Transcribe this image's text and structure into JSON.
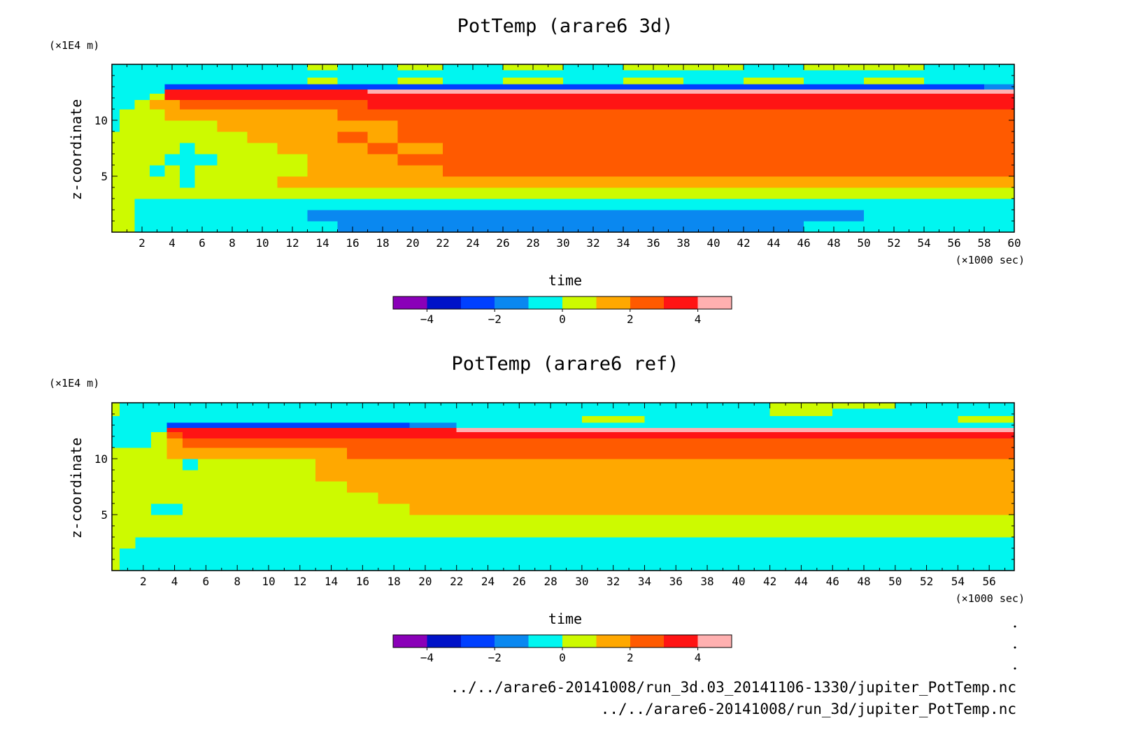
{
  "chart_data": [
    {
      "type": "heatmap",
      "title": "PotTemp (arare6 3d)",
      "xlabel": "time",
      "x_unit": "(×1000 sec)",
      "ylabel": "z-coordinate",
      "y_unit": "(×1E4 m)",
      "xlim": [
        0,
        60
      ],
      "ylim": [
        0,
        15
      ],
      "x_ticks": [
        2,
        4,
        6,
        8,
        10,
        12,
        14,
        16,
        18,
        20,
        22,
        24,
        26,
        28,
        30,
        32,
        34,
        36,
        38,
        40,
        42,
        44,
        46,
        48,
        50,
        52,
        54,
        56,
        58,
        60
      ],
      "y_ticks": [
        5,
        10
      ],
      "colorbar": {
        "levels": [
          -5,
          -4,
          -3,
          -2,
          -1,
          0,
          1,
          2,
          3,
          4,
          5
        ],
        "tick_labels": [
          "−4",
          "−2",
          "0",
          "2",
          "4"
        ],
        "tick_values": [
          -4,
          -2,
          0,
          2,
          4
        ]
      },
      "field": {
        "x": [
          0,
          1,
          2,
          3,
          4,
          5,
          6,
          8,
          10,
          12,
          14,
          16,
          18,
          20,
          24,
          28,
          32,
          36,
          40,
          44,
          48,
          52,
          56,
          60
        ],
        "y": [
          0.5,
          1.5,
          2.5,
          3.5,
          4.5,
          5.5,
          6.5,
          7.5,
          8.5,
          9.5,
          10.5,
          11.5,
          12.2,
          12.6,
          13.0,
          13.5,
          14.2,
          14.8
        ],
        "values": [
          [
            0.7,
            0.5,
            -0.4,
            -0.4,
            -0.4,
            -0.4,
            -0.4,
            -0.4,
            -0.4,
            -0.4,
            -0.8,
            -1.4,
            -1.5,
            -1.5,
            -1.5,
            -1.5,
            -1.5,
            -1.5,
            -1.4,
            -1.2,
            -0.6,
            -0.5,
            -0.4,
            -0.4
          ],
          [
            0.7,
            0.5,
            -0.4,
            -0.4,
            -0.4,
            -0.4,
            -0.4,
            -0.4,
            -0.4,
            -0.4,
            -1.3,
            -1.6,
            -1.6,
            -1.6,
            -1.6,
            -1.6,
            -1.6,
            -1.6,
            -1.6,
            -1.3,
            -1.2,
            -0.6,
            -0.6,
            -0.5
          ],
          [
            0.7,
            0.6,
            -0.3,
            -0.3,
            -0.3,
            -0.3,
            -0.3,
            -0.3,
            -0.3,
            -0.3,
            -0.3,
            -0.3,
            -0.3,
            -0.3,
            -0.3,
            -0.3,
            -0.3,
            -0.3,
            -0.3,
            -0.3,
            -0.3,
            -0.3,
            -0.3,
            -0.3
          ],
          [
            0.7,
            0.7,
            0.5,
            0.5,
            0.5,
            0.5,
            0.5,
            0.5,
            0.5,
            0.6,
            0.6,
            0.7,
            0.7,
            0.8,
            0.8,
            0.8,
            0.8,
            0.8,
            0.8,
            0.8,
            0.8,
            0.8,
            0.8,
            0.8
          ],
          [
            0.7,
            0.7,
            0.6,
            0.6,
            0.6,
            -0.3,
            0.6,
            0.6,
            0.6,
            1.2,
            1.4,
            1.5,
            1.6,
            1.6,
            1.6,
            1.6,
            1.6,
            1.6,
            1.6,
            1.6,
            1.6,
            1.6,
            1.6,
            1.5
          ],
          [
            0.6,
            0.6,
            0.6,
            -0.3,
            0.6,
            -0.3,
            0.6,
            0.6,
            0.6,
            0.6,
            1.4,
            1.5,
            1.6,
            1.7,
            2.1,
            2.5,
            2.6,
            2.6,
            2.6,
            2.6,
            2.6,
            2.6,
            2.6,
            2.6
          ],
          [
            0.6,
            0.6,
            0.6,
            0.6,
            -0.3,
            -0.4,
            -0.3,
            0.6,
            0.6,
            0.6,
            1.4,
            1.5,
            1.6,
            2.0,
            2.3,
            2.6,
            2.7,
            2.7,
            2.7,
            2.7,
            2.7,
            2.7,
            2.7,
            2.7
          ],
          [
            0.6,
            0.6,
            0.6,
            0.6,
            0.6,
            -0.3,
            0.6,
            0.6,
            0.6,
            1.3,
            1.5,
            1.6,
            2.1,
            1.6,
            2.5,
            2.7,
            2.8,
            2.8,
            2.8,
            2.8,
            2.8,
            2.8,
            2.8,
            2.8
          ],
          [
            0.5,
            0.6,
            0.6,
            0.6,
            0.6,
            0.6,
            0.6,
            0.6,
            1.3,
            1.5,
            1.6,
            2.1,
            1.6,
            2.3,
            2.6,
            2.8,
            2.8,
            2.8,
            2.8,
            2.8,
            2.8,
            2.8,
            2.8,
            2.8
          ],
          [
            -0.3,
            0.6,
            0.6,
            0.6,
            0.6,
            0.6,
            0.6,
            1.3,
            1.4,
            1.5,
            1.6,
            1.7,
            1.8,
            2.1,
            2.5,
            2.7,
            2.8,
            2.8,
            2.8,
            2.8,
            2.8,
            2.8,
            2.8,
            2.8
          ],
          [
            -0.3,
            0.4,
            0.6,
            0.6,
            1.2,
            1.3,
            1.3,
            1.4,
            1.5,
            1.6,
            1.8,
            2.0,
            2.2,
            2.4,
            2.7,
            2.8,
            2.8,
            2.8,
            2.8,
            2.8,
            2.8,
            2.8,
            2.8,
            2.8
          ],
          [
            -0.3,
            -0.3,
            0.5,
            1.2,
            1.5,
            2.5,
            2.5,
            2.2,
            2.1,
            2.2,
            2.5,
            2.8,
            3.2,
            3.3,
            3.4,
            3.4,
            3.4,
            3.4,
            3.4,
            3.4,
            3.4,
            3.4,
            3.4,
            3.4
          ],
          [
            -0.3,
            -0.3,
            -0.3,
            0.8,
            3.2,
            3.3,
            3.4,
            3.3,
            3.3,
            3.3,
            3.3,
            3.3,
            3.3,
            3.4,
            3.5,
            3.5,
            3.5,
            3.5,
            3.5,
            3.5,
            3.5,
            3.5,
            3.5,
            3.5
          ],
          [
            -0.3,
            -0.3,
            -0.3,
            -0.3,
            3.4,
            3.5,
            3.6,
            3.7,
            3.7,
            3.8,
            3.8,
            3.9,
            4.1,
            4.2,
            4.2,
            4.3,
            4.3,
            4.3,
            4.3,
            4.4,
            4.4,
            4.5,
            4.5,
            4.5
          ],
          [
            -0.3,
            -0.3,
            -0.3,
            -0.3,
            -2.6,
            -2.4,
            -2.4,
            -2.6,
            -2.6,
            -2.7,
            -2.5,
            -2.6,
            -2.7,
            -2.5,
            -2.6,
            -2.5,
            -2.6,
            -2.5,
            -2.6,
            -2.4,
            -2.3,
            -2.2,
            -2.1,
            -2.0
          ],
          [
            -0.3,
            -0.3,
            -0.3,
            -0.3,
            -0.3,
            -0.3,
            -0.3,
            -0.3,
            -0.3,
            -0.3,
            0.6,
            -0.3,
            -0.3,
            0.6,
            -0.3,
            0.6,
            -0.3,
            0.6,
            -0.3,
            0.6,
            -0.3,
            0.6,
            -0.3,
            -0.3
          ],
          [
            -0.3,
            -0.3,
            -0.3,
            -0.3,
            -0.3,
            -0.3,
            -0.3,
            -0.3,
            -0.3,
            -0.3,
            -0.3,
            -0.3,
            -0.3,
            -0.3,
            -0.3,
            -0.3,
            -0.3,
            -0.3,
            -0.3,
            -0.3,
            -0.3,
            -0.3,
            -0.3,
            -0.3
          ],
          [
            -0.3,
            -0.3,
            -0.3,
            -0.3,
            -0.3,
            -0.3,
            -0.3,
            -0.3,
            -0.3,
            -0.3,
            0.6,
            -0.3,
            -0.3,
            0.6,
            -0.3,
            0.6,
            -0.3,
            0.6,
            0.6,
            -0.3,
            0.6,
            0.6,
            -0.3,
            -0.3
          ]
        ]
      }
    },
    {
      "type": "heatmap",
      "title": "PotTemp (arare6 ref)",
      "xlabel": "time",
      "x_unit": "(×1000 sec)",
      "ylabel": "z-coordinate",
      "y_unit": "(×1E4 m)",
      "xlim": [
        0,
        57.6
      ],
      "ylim": [
        0,
        15
      ],
      "x_ticks": [
        2,
        4,
        6,
        8,
        10,
        12,
        14,
        16,
        18,
        20,
        22,
        24,
        26,
        28,
        30,
        32,
        34,
        36,
        38,
        40,
        42,
        44,
        46,
        48,
        50,
        52,
        54,
        56
      ],
      "y_ticks": [
        5,
        10
      ],
      "colorbar": {
        "levels": [
          -5,
          -4,
          -3,
          -2,
          -1,
          0,
          1,
          2,
          3,
          4,
          5
        ],
        "tick_labels": [
          "−4",
          "−2",
          "0",
          "2",
          "4"
        ],
        "tick_values": [
          -4,
          -2,
          0,
          2,
          4
        ]
      },
      "field": {
        "x": [
          0,
          1,
          2,
          3,
          4,
          5,
          6,
          8,
          10,
          12,
          14,
          16,
          18,
          20,
          24,
          28,
          32,
          36,
          40,
          44,
          48,
          52,
          56,
          57.6
        ],
        "y": [
          0.5,
          1.5,
          2.5,
          3.5,
          4.5,
          5.5,
          6.5,
          7.5,
          8.5,
          9.5,
          10.5,
          11.5,
          12.2,
          12.6,
          13.0,
          13.5,
          14.2,
          14.8
        ],
        "values": [
          [
            0.7,
            -0.4,
            -0.4,
            -0.4,
            -0.4,
            -0.4,
            -0.4,
            -0.4,
            -0.4,
            -0.4,
            -0.4,
            -0.4,
            -0.4,
            -0.4,
            -0.4,
            -0.4,
            -0.4,
            -0.4,
            -0.4,
            -0.4,
            -0.4,
            -0.4,
            -0.4,
            -0.4
          ],
          [
            0.7,
            -0.4,
            -0.4,
            -0.4,
            -0.4,
            -0.4,
            -0.4,
            -0.4,
            -0.4,
            -0.4,
            -0.4,
            -0.4,
            -0.4,
            -0.4,
            -0.4,
            -0.4,
            -0.4,
            -0.4,
            -0.4,
            -0.4,
            -0.4,
            -0.4,
            -0.4,
            -0.4
          ],
          [
            0.7,
            0.7,
            -0.3,
            -0.3,
            -0.3,
            -0.3,
            -0.3,
            -0.3,
            -0.3,
            -0.3,
            -0.3,
            -0.3,
            -0.3,
            -0.3,
            -0.3,
            -0.3,
            -0.3,
            -0.3,
            -0.3,
            -0.3,
            -0.3,
            -0.3,
            -0.3,
            -0.3
          ],
          [
            0.6,
            0.6,
            0.6,
            0.6,
            0.6,
            0.6,
            0.6,
            0.6,
            0.6,
            0.6,
            0.6,
            0.6,
            0.6,
            0.6,
            0.6,
            0.6,
            0.6,
            0.6,
            0.6,
            0.6,
            0.6,
            0.6,
            0.6,
            0.6
          ],
          [
            0.6,
            0.6,
            0.6,
            0.6,
            0.6,
            0.6,
            0.6,
            0.6,
            0.6,
            0.6,
            0.6,
            0.6,
            0.6,
            0.6,
            0.6,
            0.6,
            0.6,
            0.6,
            0.6,
            0.6,
            0.6,
            0.6,
            0.6,
            0.6
          ],
          [
            0.6,
            0.6,
            0.6,
            -0.3,
            -0.3,
            0.6,
            0.6,
            0.6,
            0.6,
            0.6,
            0.6,
            0.6,
            0.6,
            1.5,
            1.7,
            1.7,
            1.7,
            1.7,
            1.7,
            1.7,
            1.7,
            1.7,
            1.7,
            1.7
          ],
          [
            0.6,
            0.6,
            0.6,
            0.6,
            0.6,
            0.6,
            0.6,
            0.6,
            0.6,
            0.6,
            0.6,
            0.6,
            1.5,
            1.6,
            1.7,
            1.7,
            1.7,
            1.7,
            1.7,
            1.7,
            1.7,
            1.7,
            1.7,
            1.7
          ],
          [
            0.6,
            0.6,
            0.6,
            0.6,
            0.6,
            0.6,
            0.6,
            0.6,
            0.6,
            0.6,
            0.6,
            1.5,
            1.6,
            1.7,
            1.7,
            1.7,
            1.7,
            1.7,
            1.7,
            1.7,
            1.7,
            1.7,
            1.7,
            1.7
          ],
          [
            0.6,
            0.6,
            0.6,
            0.6,
            0.6,
            0.6,
            0.6,
            0.6,
            0.6,
            0.6,
            1.3,
            1.5,
            1.6,
            1.7,
            1.7,
            1.7,
            1.7,
            1.7,
            1.7,
            1.7,
            1.7,
            1.7,
            1.7,
            1.7
          ],
          [
            0.6,
            0.6,
            0.6,
            0.6,
            0.6,
            -0.3,
            0.6,
            0.6,
            0.6,
            0.6,
            1.3,
            1.5,
            1.6,
            1.7,
            1.7,
            1.7,
            1.7,
            1.7,
            1.7,
            1.7,
            1.7,
            1.7,
            1.7,
            1.7
          ],
          [
            0.6,
            0.6,
            0.6,
            0.6,
            1.3,
            1.4,
            1.5,
            1.6,
            1.7,
            1.8,
            1.9,
            2.1,
            2.2,
            2.3,
            2.4,
            2.6,
            2.6,
            2.6,
            2.6,
            2.6,
            2.6,
            2.6,
            2.6,
            2.6
          ],
          [
            -0.3,
            -0.3,
            -0.3,
            0.8,
            1.5,
            2.3,
            2.4,
            2.5,
            2.5,
            2.6,
            2.6,
            2.6,
            2.7,
            2.7,
            2.8,
            2.8,
            2.8,
            2.8,
            2.8,
            2.8,
            2.8,
            2.8,
            2.8,
            2.8
          ],
          [
            -0.3,
            -0.3,
            -0.3,
            0.8,
            2.2,
            3.3,
            3.4,
            3.4,
            3.4,
            3.4,
            3.4,
            3.4,
            3.4,
            3.4,
            3.4,
            3.4,
            3.4,
            3.4,
            3.4,
            3.4,
            3.4,
            3.4,
            3.4,
            3.4
          ],
          [
            -0.3,
            -0.3,
            -0.3,
            -0.3,
            3.3,
            3.5,
            3.6,
            3.7,
            3.7,
            3.7,
            3.8,
            3.8,
            3.9,
            3.9,
            4.0,
            4.0,
            4.0,
            4.2,
            4.2,
            4.3,
            4.3,
            4.4,
            4.5,
            4.5
          ],
          [
            -0.3,
            -0.3,
            -0.3,
            -0.3,
            -2.6,
            -2.4,
            -2.5,
            -2.6,
            -2.6,
            -2.7,
            -2.5,
            -2.4,
            -2.2,
            -1.4,
            -0.6,
            -0.4,
            -0.4,
            -0.4,
            -0.4,
            -0.4,
            -0.4,
            -0.4,
            -0.4,
            -0.4
          ],
          [
            -0.3,
            -0.3,
            -0.3,
            -0.3,
            -0.3,
            -0.3,
            -0.3,
            -0.3,
            -0.3,
            -0.3,
            -0.3,
            -0.3,
            -0.3,
            -0.3,
            -0.3,
            -0.3,
            0.6,
            -0.3,
            -0.3,
            -0.3,
            -0.3,
            -0.3,
            0.6,
            0.6
          ],
          [
            0.6,
            -0.3,
            -0.3,
            -0.3,
            -0.3,
            -0.3,
            -0.3,
            -0.3,
            -0.3,
            -0.3,
            -0.3,
            -0.3,
            -0.3,
            -0.3,
            -0.3,
            -0.3,
            -0.3,
            -0.3,
            -0.3,
            0.6,
            -0.3,
            -0.3,
            -0.3,
            -0.3
          ],
          [
            0.6,
            -0.3,
            -0.3,
            -0.3,
            -0.3,
            -0.3,
            -0.3,
            -0.3,
            -0.3,
            -0.3,
            -0.3,
            -0.3,
            -0.3,
            -0.3,
            -0.3,
            -0.3,
            -0.3,
            -0.3,
            -0.3,
            0.6,
            0.6,
            -0.3,
            -0.3,
            -0.3
          ]
        ]
      }
    }
  ],
  "colors": {
    "palette": [
      "#8a00b8",
      "#0012c8",
      "#0040ff",
      "#0a88f0",
      "#00f6f0",
      "#cdfa00",
      "#ffa800",
      "#ff5a00",
      "#ff1414",
      "#ffb0b0"
    ]
  },
  "footer": {
    "file_1": "../../arare6-20141008/run_3d.03_20141106-1330/jupiter_PotTemp.nc",
    "file_2": "../../arare6-20141008/run_3d/jupiter_PotTemp.nc"
  }
}
